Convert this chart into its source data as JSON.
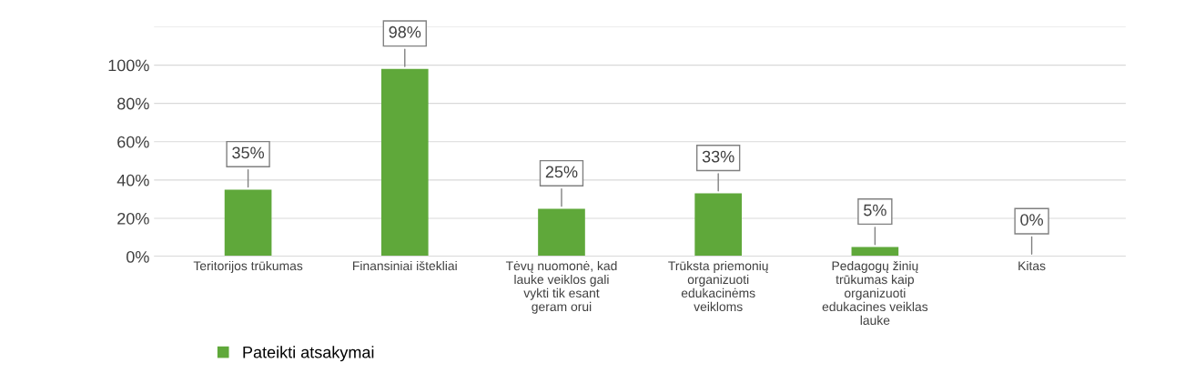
{
  "chart_data": {
    "type": "bar",
    "categories": [
      "Teritorijos trūkumas",
      "Finansiniai ištekliai",
      "Tėvų nuomonė, kad\nlauke veiklos gali\nvykti tik esant\ngeram orui",
      "Trūksta priemonių\norganizuoti\nedukacinėms\nveikloms",
      "Pedagogų žinių\ntrūkumas kaip\norganizuoti\nedukacines veiklas\nlauke",
      "Kitas"
    ],
    "series": [
      {
        "name": "Pateikti atsakymai",
        "color": "#5fa83a",
        "values": [
          35,
          98,
          25,
          33,
          5,
          0
        ]
      }
    ],
    "value_labels": [
      "35%",
      "98%",
      "25%",
      "33%",
      "5%",
      "0%"
    ],
    "ylim": [
      0,
      120
    ],
    "yticks": [
      {
        "value": 0,
        "label": "0%"
      },
      {
        "value": 20,
        "label": "20%"
      },
      {
        "value": 40,
        "label": "40%"
      },
      {
        "value": 60,
        "label": "60%"
      },
      {
        "value": 80,
        "label": "80%"
      },
      {
        "value": 100,
        "label": "100%"
      },
      {
        "value": 120,
        "label": null
      }
    ],
    "grid": "y",
    "legend": "bottom left"
  }
}
